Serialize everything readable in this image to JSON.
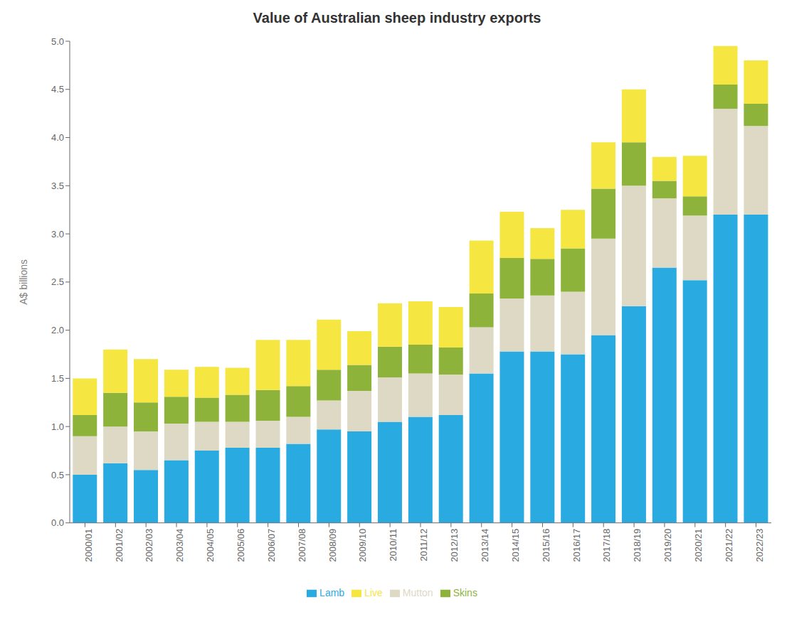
{
  "chart_data": {
    "type": "bar",
    "title": "Value of Australian sheep industry exports",
    "y_label": "A$ billions",
    "categories": [
      "2000/01",
      "2001/02",
      "2002/03",
      "2003/04",
      "2004/05",
      "2005/06",
      "2006/07",
      "2007/08",
      "2008/09",
      "2009/10",
      "2010/11",
      "2011/12",
      "2012/13",
      "2013/14",
      "2014/15",
      "2015/16",
      "2016/17",
      "2017/18",
      "2018/19",
      "2019/20",
      "2020/21",
      "2021/22",
      "2022/23"
    ],
    "series": [
      {
        "name": "Lamb",
        "color": "#29ABE2",
        "values": [
          0.5,
          0.62,
          0.55,
          0.65,
          0.75,
          0.78,
          0.78,
          0.82,
          0.97,
          0.95,
          1.05,
          1.1,
          1.12,
          1.55,
          1.78,
          1.78,
          1.75,
          1.95,
          2.25,
          2.65,
          2.52,
          3.2,
          3.2
        ]
      },
      {
        "name": "Mutton",
        "color": "#DDD9C4",
        "values": [
          0.4,
          0.38,
          0.4,
          0.38,
          0.3,
          0.27,
          0.28,
          0.28,
          0.3,
          0.42,
          0.46,
          0.45,
          0.42,
          0.48,
          0.55,
          0.58,
          0.65,
          1.0,
          1.25,
          0.72,
          0.67,
          1.1,
          0.92
        ]
      },
      {
        "name": "Skins",
        "color": "#8DB33A",
        "values": [
          0.22,
          0.35,
          0.3,
          0.28,
          0.25,
          0.28,
          0.32,
          0.32,
          0.32,
          0.27,
          0.32,
          0.3,
          0.28,
          0.35,
          0.42,
          0.38,
          0.45,
          0.52,
          0.45,
          0.18,
          0.2,
          0.25,
          0.23
        ]
      },
      {
        "name": "Live",
        "color": "#F5E642",
        "values": [
          0.38,
          0.45,
          0.45,
          0.28,
          0.32,
          0.28,
          0.52,
          0.48,
          0.52,
          0.35,
          0.45,
          0.45,
          0.42,
          0.55,
          0.48,
          0.32,
          0.4,
          0.48,
          0.55,
          0.25,
          0.42,
          0.4,
          0.45
        ]
      }
    ],
    "ylim": [
      0,
      5.0
    ],
    "yticks": [
      {
        "value": 0.0,
        "label": "0.0"
      },
      0.5,
      {
        "value": 1.0,
        "label": "1.0"
      },
      1.5,
      {
        "value": 2.0,
        "label": "2.0"
      },
      2.5,
      {
        "value": 3.0,
        "label": "3.0"
      },
      3.5,
      {
        "value": 4.0,
        "label": "4.0"
      },
      4.5,
      {
        "value": 5.0,
        "label": "5.0"
      }
    ],
    "stacked": true,
    "grid": false,
    "legend": "bottom"
  }
}
